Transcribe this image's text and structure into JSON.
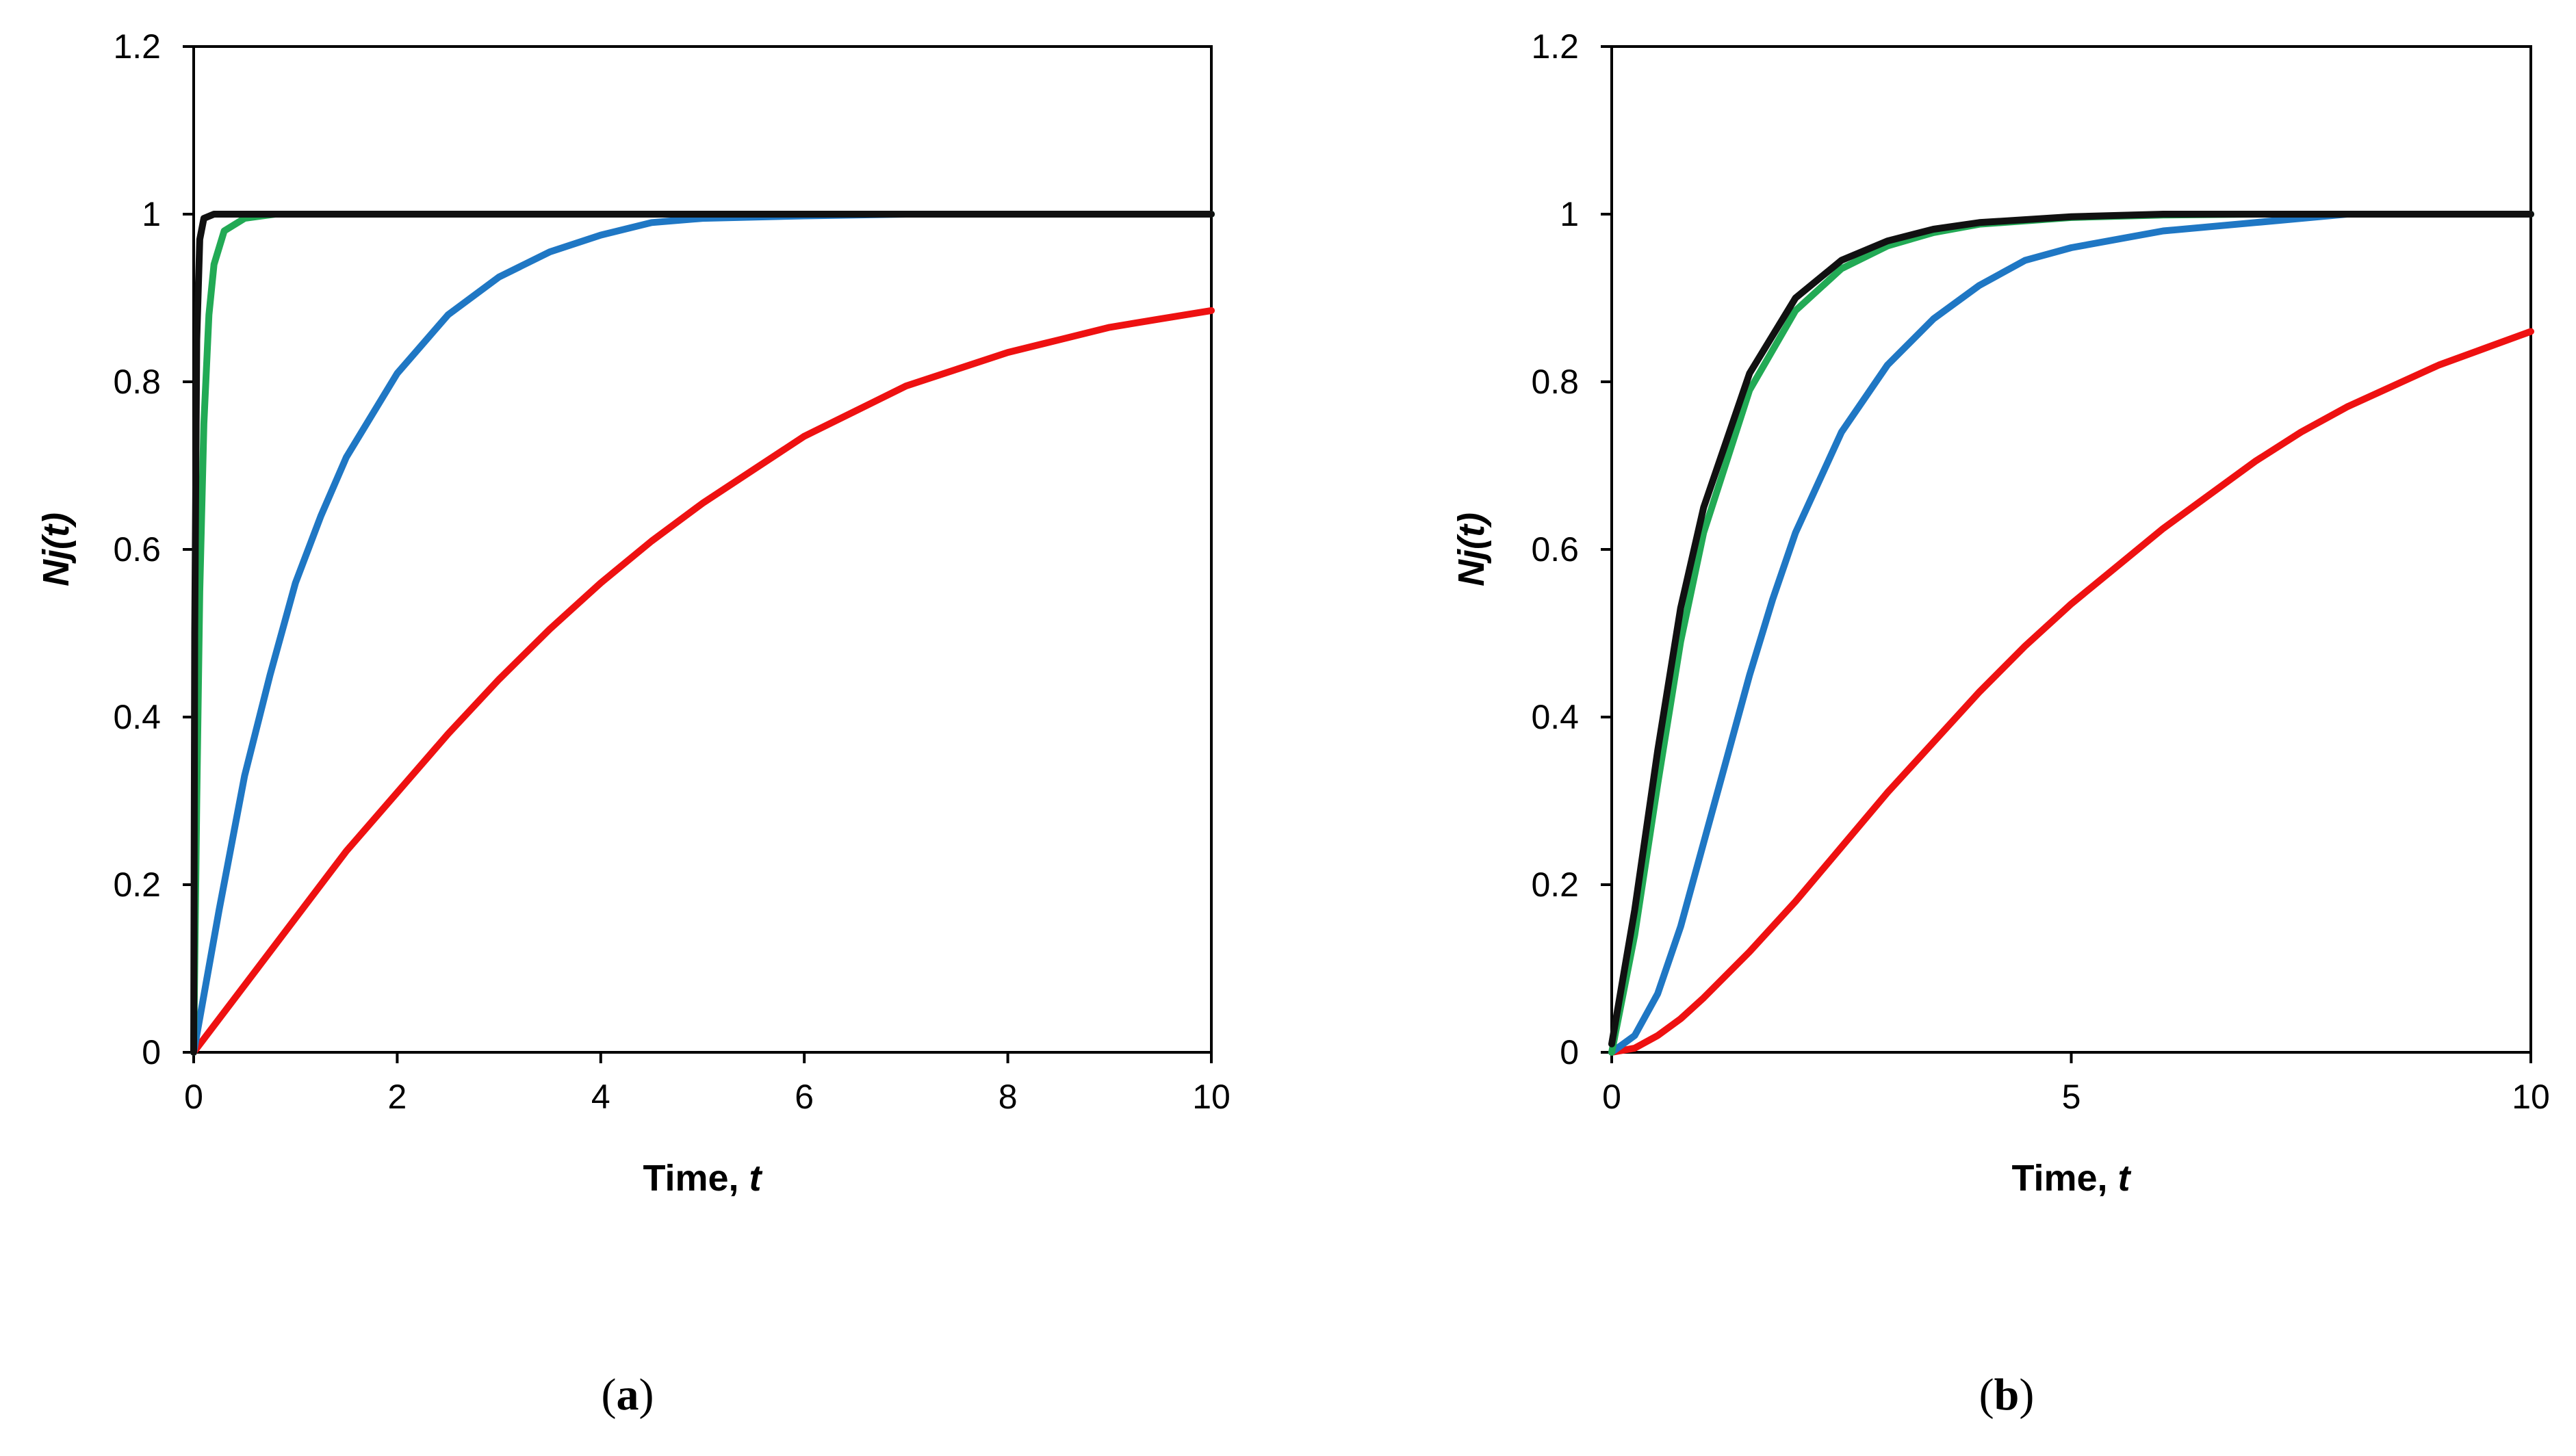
{
  "chart_data": [
    {
      "type": "line",
      "panel": "a",
      "caption": {
        "open": "(",
        "letter": "a",
        "close": ")"
      },
      "title": "",
      "xlabel": {
        "main": "Time, ",
        "italic": "t"
      },
      "ylabel": {
        "main": "Nj(",
        "italic": "t",
        "close": ")"
      },
      "xlim": [
        0,
        10
      ],
      "ylim": [
        0,
        1.2
      ],
      "xticks": [
        0,
        2,
        4,
        6,
        8,
        10
      ],
      "xtick_labels": [
        "0",
        "2",
        "4",
        "6",
        "8",
        "10"
      ],
      "yticks": [
        0,
        0.2,
        0.4,
        0.6,
        0.8,
        1,
        1.2
      ],
      "ytick_labels": [
        "0",
        "0.2",
        "0.4",
        "0.6",
        "0.8",
        "1",
        "1.2"
      ],
      "grid": false,
      "series": [
        {
          "name": "red",
          "color": "#ee1111",
          "points": [
            [
              0,
              0
            ],
            [
              0.5,
              0.08
            ],
            [
              1,
              0.16
            ],
            [
              1.5,
              0.24
            ],
            [
              2,
              0.31
            ],
            [
              2.5,
              0.38
            ],
            [
              3,
              0.445
            ],
            [
              3.5,
              0.505
            ],
            [
              4,
              0.56
            ],
            [
              4.5,
              0.61
            ],
            [
              5,
              0.655
            ],
            [
              5.5,
              0.695
            ],
            [
              6,
              0.735
            ],
            [
              6.5,
              0.765
            ],
            [
              7,
              0.795
            ],
            [
              7.5,
              0.815
            ],
            [
              8,
              0.835
            ],
            [
              8.5,
              0.85
            ],
            [
              9,
              0.865
            ],
            [
              9.5,
              0.875
            ],
            [
              10,
              0.885
            ]
          ]
        },
        {
          "name": "blue",
          "color": "#1f77c4",
          "points": [
            [
              0,
              0
            ],
            [
              0.25,
              0.17
            ],
            [
              0.5,
              0.33
            ],
            [
              0.75,
              0.45
            ],
            [
              1,
              0.56
            ],
            [
              1.25,
              0.64
            ],
            [
              1.5,
              0.71
            ],
            [
              2,
              0.81
            ],
            [
              2.5,
              0.88
            ],
            [
              3,
              0.925
            ],
            [
              3.5,
              0.955
            ],
            [
              4,
              0.975
            ],
            [
              4.5,
              0.99
            ],
            [
              5,
              0.995
            ],
            [
              6,
              0.998
            ],
            [
              7,
              1
            ],
            [
              8,
              1
            ],
            [
              9,
              1
            ],
            [
              10,
              1
            ]
          ]
        },
        {
          "name": "green",
          "color": "#22aa55",
          "points": [
            [
              0,
              0
            ],
            [
              0.03,
              0.3
            ],
            [
              0.06,
              0.55
            ],
            [
              0.1,
              0.75
            ],
            [
              0.15,
              0.88
            ],
            [
              0.2,
              0.94
            ],
            [
              0.3,
              0.98
            ],
            [
              0.5,
              0.995
            ],
            [
              0.8,
              1
            ],
            [
              2,
              1
            ],
            [
              4,
              1
            ],
            [
              6,
              1
            ],
            [
              8,
              1
            ],
            [
              10,
              1
            ]
          ]
        },
        {
          "name": "black",
          "color": "#111111",
          "points": [
            [
              0,
              0
            ],
            [
              0.01,
              0.5
            ],
            [
              0.03,
              0.85
            ],
            [
              0.06,
              0.97
            ],
            [
              0.1,
              0.995
            ],
            [
              0.2,
              1
            ],
            [
              0.4,
              1
            ],
            [
              0.8,
              1
            ],
            [
              2,
              1
            ],
            [
              4,
              1
            ],
            [
              6,
              1
            ],
            [
              8,
              1
            ],
            [
              10,
              1
            ]
          ]
        }
      ]
    },
    {
      "type": "line",
      "panel": "b",
      "caption": {
        "open": "(",
        "letter": "b",
        "close": ")"
      },
      "title": "",
      "xlabel": {
        "main": "Time, ",
        "italic": "t"
      },
      "ylabel": {
        "main": "Nj(",
        "italic": "t",
        "close": ")"
      },
      "xlim": [
        0,
        10
      ],
      "ylim": [
        0,
        1.2
      ],
      "xticks": [
        0,
        5,
        10
      ],
      "xtick_labels": [
        "0",
        "5",
        "10"
      ],
      "yticks": [
        0,
        0.2,
        0.4,
        0.6,
        0.8,
        1,
        1.2
      ],
      "ytick_labels": [
        "0",
        "0.2",
        "0.4",
        "0.6",
        "0.8",
        "1",
        "1.2"
      ],
      "grid": false,
      "series": [
        {
          "name": "red",
          "color": "#ee1111",
          "points": [
            [
              0,
              0
            ],
            [
              0.25,
              0.005
            ],
            [
              0.5,
              0.02
            ],
            [
              0.75,
              0.04
            ],
            [
              1,
              0.065
            ],
            [
              1.5,
              0.12
            ],
            [
              2,
              0.18
            ],
            [
              2.5,
              0.245
            ],
            [
              3,
              0.31
            ],
            [
              3.5,
              0.37
            ],
            [
              4,
              0.43
            ],
            [
              4.5,
              0.485
            ],
            [
              5,
              0.535
            ],
            [
              5.5,
              0.58
            ],
            [
              6,
              0.625
            ],
            [
              6.5,
              0.665
            ],
            [
              7,
              0.705
            ],
            [
              7.5,
              0.74
            ],
            [
              8,
              0.77
            ],
            [
              8.5,
              0.795
            ],
            [
              9,
              0.82
            ],
            [
              9.5,
              0.84
            ],
            [
              10,
              0.86
            ]
          ]
        },
        {
          "name": "blue",
          "color": "#1f77c4",
          "points": [
            [
              0,
              0
            ],
            [
              0.25,
              0.02
            ],
            [
              0.5,
              0.07
            ],
            [
              0.75,
              0.15
            ],
            [
              1,
              0.25
            ],
            [
              1.25,
              0.35
            ],
            [
              1.5,
              0.45
            ],
            [
              1.75,
              0.54
            ],
            [
              2,
              0.62
            ],
            [
              2.5,
              0.74
            ],
            [
              3,
              0.82
            ],
            [
              3.5,
              0.875
            ],
            [
              4,
              0.915
            ],
            [
              4.5,
              0.945
            ],
            [
              5,
              0.96
            ],
            [
              6,
              0.98
            ],
            [
              7,
              0.99
            ],
            [
              8,
              1
            ],
            [
              9,
              1
            ],
            [
              10,
              1
            ]
          ]
        },
        {
          "name": "green",
          "color": "#22aa55",
          "points": [
            [
              0,
              0
            ],
            [
              0.25,
              0.14
            ],
            [
              0.5,
              0.32
            ],
            [
              0.75,
              0.49
            ],
            [
              1,
              0.62
            ],
            [
              1.5,
              0.79
            ],
            [
              2,
              0.885
            ],
            [
              2.5,
              0.935
            ],
            [
              3,
              0.962
            ],
            [
              3.5,
              0.978
            ],
            [
              4,
              0.988
            ],
            [
              5,
              0.996
            ],
            [
              6,
              0.999
            ],
            [
              7,
              1
            ],
            [
              8,
              1
            ],
            [
              9,
              1
            ],
            [
              10,
              1
            ]
          ]
        },
        {
          "name": "black",
          "color": "#111111",
          "points": [
            [
              0,
              0.01
            ],
            [
              0.25,
              0.17
            ],
            [
              0.5,
              0.36
            ],
            [
              0.75,
              0.53
            ],
            [
              1,
              0.65
            ],
            [
              1.5,
              0.81
            ],
            [
              2,
              0.9
            ],
            [
              2.5,
              0.945
            ],
            [
              3,
              0.968
            ],
            [
              3.5,
              0.982
            ],
            [
              4,
              0.99
            ],
            [
              5,
              0.997
            ],
            [
              6,
              1
            ],
            [
              7,
              1
            ],
            [
              8,
              1
            ],
            [
              9,
              1
            ],
            [
              10,
              1
            ]
          ]
        }
      ]
    }
  ]
}
